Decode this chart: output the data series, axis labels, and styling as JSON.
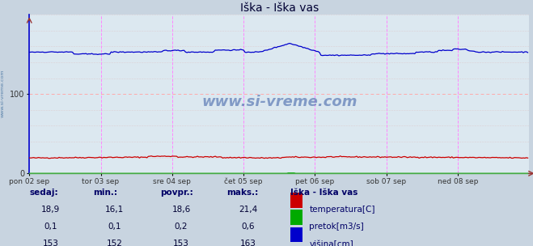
{
  "title": "Iška - Iška vas",
  "bg_color": "#c8d4e0",
  "plot_bg_color": "#dce8f0",
  "x_labels": [
    "pon 02 sep",
    "tor 03 sep",
    "sre 04 sep",
    "čet 05 sep",
    "pet 06 sep",
    "sob 07 sep",
    "ned 08 sep"
  ],
  "y_ticks": [
    0,
    100
  ],
  "ylim": [
    0,
    200
  ],
  "xlim_days": 7,
  "pts_per_day": 48,
  "watermark": "www.si-vreme.com",
  "watermark_color": "#4466aa",
  "legend_title": "Iška - Iška vas",
  "legend_items": [
    {
      "label": "temperatura[C]",
      "color": "#cc0000"
    },
    {
      "label": "pretok[m3/s]",
      "color": "#00aa00"
    },
    {
      "label": "višina[cm]",
      "color": "#0000cc"
    }
  ],
  "table_headers": [
    "sedaj:",
    "min.:",
    "povpr.:",
    "maks.:"
  ],
  "table_data": [
    [
      "18,9",
      "16,1",
      "18,6",
      "21,4"
    ],
    [
      "0,1",
      "0,1",
      "0,2",
      "0,6"
    ],
    [
      "153",
      "152",
      "153",
      "163"
    ]
  ],
  "grid_h_color": "#ffaaaa",
  "grid_v_color": "#ff88ff",
  "grid_dot_color": "#ddbbbb",
  "axis_line_color": "#0000cc",
  "bottom_line_color": "#44aa44",
  "text_color": "#000066",
  "arrow_color": "#993333",
  "title_color": "#000033",
  "side_text_color": "#336699"
}
